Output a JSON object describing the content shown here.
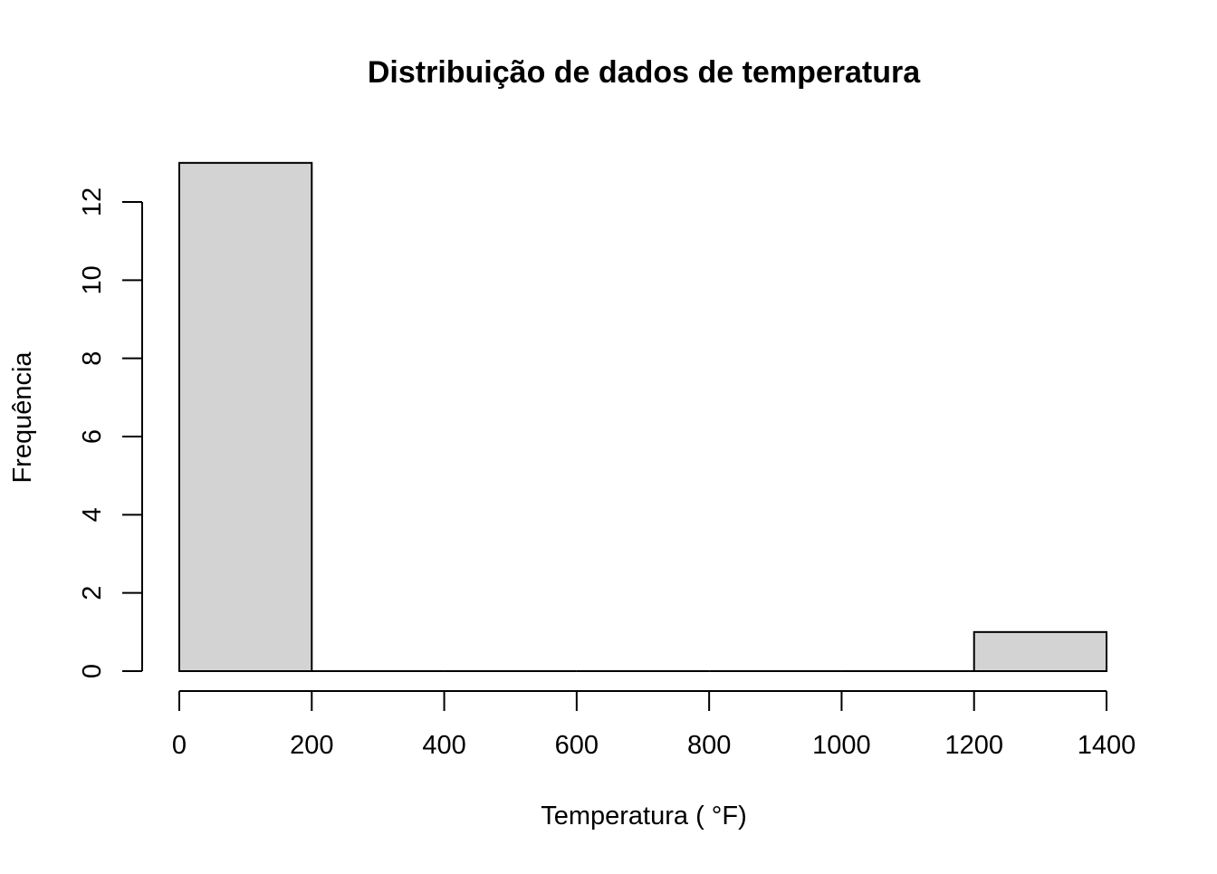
{
  "chart_data": {
    "type": "bar",
    "title": "Distribuição de dados de temperatura",
    "xlabel": "Temperatura ( °F)",
    "ylabel": "Frequência",
    "bins": [
      {
        "start": 0,
        "end": 200,
        "count": 13
      },
      {
        "start": 200,
        "end": 400,
        "count": 0
      },
      {
        "start": 400,
        "end": 600,
        "count": 0
      },
      {
        "start": 600,
        "end": 800,
        "count": 0
      },
      {
        "start": 800,
        "end": 1000,
        "count": 0
      },
      {
        "start": 1000,
        "end": 1200,
        "count": 0
      },
      {
        "start": 1200,
        "end": 1400,
        "count": 1
      }
    ],
    "xlim": [
      0,
      1400
    ],
    "ylim": [
      0,
      13
    ],
    "x_ticks": [
      0,
      200,
      400,
      600,
      800,
      1000,
      1200,
      1400
    ],
    "y_ticks": [
      0,
      2,
      4,
      6,
      8,
      10,
      12
    ],
    "bar_fill": "#d3d3d3",
    "bar_stroke": "#000000",
    "grid": false,
    "legend": "none"
  }
}
